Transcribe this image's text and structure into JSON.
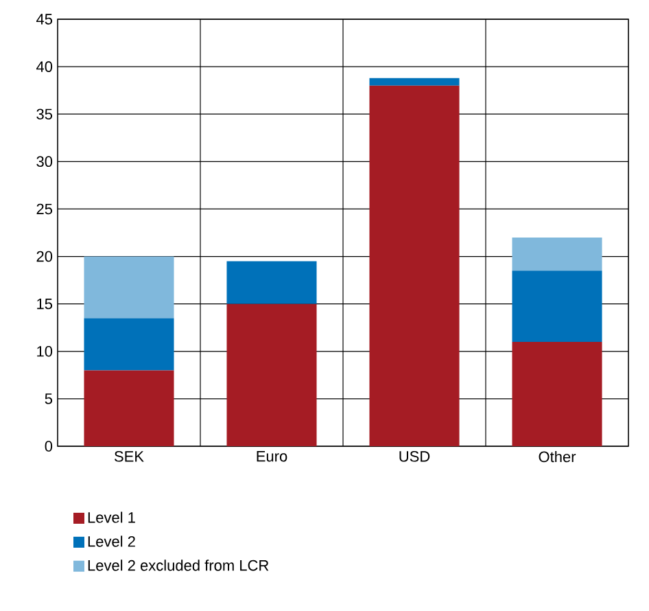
{
  "chart_data": {
    "type": "bar",
    "stacked": true,
    "categories": [
      "SEK",
      "Euro",
      "USD",
      "Other"
    ],
    "series": [
      {
        "name": "Level 1",
        "color": "#a51c24",
        "values": [
          8,
          15,
          38,
          11
        ]
      },
      {
        "name": "Level 2",
        "color": "#0071b9",
        "values": [
          5.5,
          4.5,
          0.8,
          7.5
        ]
      },
      {
        "name": "Level 2 excluded from LCR",
        "color": "#80b8dc",
        "values": [
          6.5,
          null,
          null,
          3.5
        ]
      }
    ],
    "ylim": [
      0,
      45
    ],
    "yticks": [
      0,
      5,
      10,
      15,
      20,
      25,
      30,
      35,
      40,
      45
    ],
    "grid": true,
    "legend": "bottom left"
  }
}
